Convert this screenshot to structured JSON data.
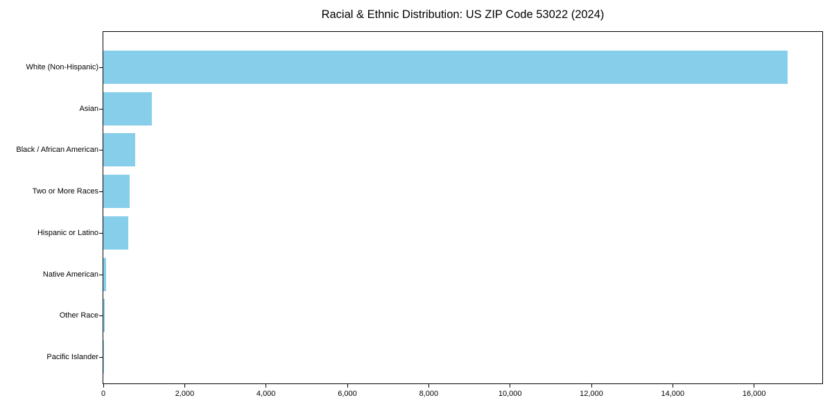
{
  "title": "Racial & Ethnic Distribution: US ZIP Code 53022 (2024)",
  "colors": {
    "bar_fill": "#87CEEB",
    "axis": "#000000",
    "text": "#000000",
    "background": "#ffffff"
  },
  "chart_data": {
    "type": "bar",
    "orientation": "horizontal",
    "title": "Racial & Ethnic Distribution: US ZIP Code 53022 (2024)",
    "xlabel": "",
    "ylabel": "",
    "categories": [
      "White (Non-Hispanic)",
      "Asian",
      "Black / African American",
      "Two or More Races",
      "Hispanic or Latino",
      "Native American",
      "Other Race",
      "Pacific Islander"
    ],
    "values": [
      16830,
      1195,
      785,
      650,
      610,
      75,
      40,
      5
    ],
    "xlim": [
      0,
      17676
    ],
    "x_ticks": [
      0,
      2000,
      4000,
      6000,
      8000,
      10000,
      12000,
      14000,
      16000
    ],
    "x_tick_labels": [
      "0",
      "2,000",
      "4,000",
      "6,000",
      "8,000",
      "10,000",
      "12,000",
      "14,000",
      "16,000"
    ],
    "grid": false,
    "legend": null,
    "bar_color": "#87CEEB"
  }
}
